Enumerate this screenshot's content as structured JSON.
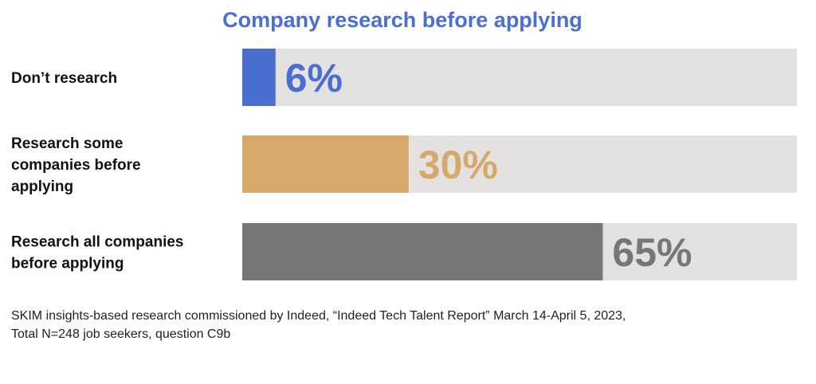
{
  "chart_data": {
    "type": "bar",
    "orientation": "horizontal",
    "title": "Company research before applying",
    "categories": [
      [
        "Don’t research"
      ],
      [
        "Research some",
        "companies before",
        "applying"
      ],
      [
        "Research all companies",
        "before applying"
      ]
    ],
    "values": [
      6,
      30,
      65
    ],
    "value_labels": [
      "6%",
      "30%",
      "65%"
    ],
    "xlim": [
      0,
      100
    ],
    "colors": [
      "#4a6fd1",
      "#d6a96b",
      "#767676"
    ],
    "track_color": "#e3e2e1",
    "grid": false,
    "legend": "none"
  },
  "footnote": {
    "line1": "SKIM insights-based research commissioned by Indeed, “Indeed Tech Talent Report” March 14-April 5, 2023,",
    "line2": "Total N=248 job seekers, question C9b"
  }
}
